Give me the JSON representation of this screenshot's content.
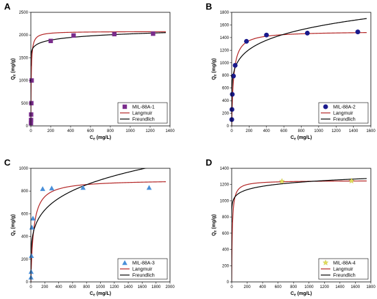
{
  "chart_data": [
    {
      "panel": "A",
      "type": "scatter",
      "xlabel": "Ce (mg/L)",
      "ylabel": "Qe (mg/g)",
      "xlim": [
        0,
        1400
      ],
      "ylim": [
        0,
        2500
      ],
      "xticks": [
        0,
        200,
        400,
        600,
        800,
        1000,
        1200,
        1400
      ],
      "yticks": [
        0,
        500,
        1000,
        1500,
        2000,
        2500
      ],
      "legend_position": "bottom-right",
      "series": [
        {
          "name": "MIL-88A-1",
          "kind": "points",
          "marker": "square",
          "color": "#7a2d8c",
          "x": [
            1,
            2,
            3,
            5,
            8,
            200,
            430,
            840,
            1230
          ],
          "y": [
            60,
            130,
            250,
            500,
            1000,
            1870,
            1990,
            2020,
            2030
          ]
        },
        {
          "name": "Langmuir",
          "kind": "curve",
          "color": "#b22222",
          "model": "langmuir",
          "qmax": 2080,
          "K": 0.25
        },
        {
          "name": "Freundlich",
          "kind": "curve",
          "color": "#000000",
          "model": "freundlich",
          "Kf": 1500,
          "n": 23
        }
      ]
    },
    {
      "panel": "B",
      "type": "scatter",
      "xlabel": "Ce (mg/L)",
      "ylabel": "Qe (mg/g)",
      "xlim": [
        0,
        1600
      ],
      "ylim": [
        0,
        1800
      ],
      "xticks": [
        0,
        200,
        400,
        600,
        800,
        1000,
        1200,
        1400,
        1600
      ],
      "yticks": [
        0,
        200,
        400,
        600,
        800,
        1000,
        1200,
        1400,
        1600,
        1800
      ],
      "legend_position": "bottom-right",
      "series": [
        {
          "name": "MIL-88A-2",
          "kind": "points",
          "marker": "circle",
          "color": "#1a1a8c",
          "x": [
            1,
            3,
            7,
            20,
            40,
            170,
            400,
            870,
            1450
          ],
          "y": [
            100,
            260,
            500,
            790,
            960,
            1340,
            1440,
            1470,
            1490
          ]
        },
        {
          "name": "Langmuir",
          "kind": "curve",
          "color": "#b22222",
          "model": "langmuir",
          "qmax": 1500,
          "K": 0.045
        },
        {
          "name": "Freundlich",
          "kind": "curve",
          "color": "#000000",
          "model": "freundlich",
          "Kf": 500,
          "n": 6
        }
      ]
    },
    {
      "panel": "C",
      "type": "scatter",
      "xlabel": "Ce (mg/L)",
      "ylabel": "Qe (mg/g)",
      "xlim": [
        0,
        2000
      ],
      "ylim": [
        0,
        1000
      ],
      "xticks": [
        0,
        200,
        400,
        600,
        800,
        1000,
        1200,
        1400,
        1600,
        1800,
        2000
      ],
      "yticks": [
        0,
        200,
        400,
        600,
        800,
        1000
      ],
      "legend_position": "bottom-right",
      "series": [
        {
          "name": "MIL-88A-3",
          "kind": "points",
          "marker": "triangle",
          "color": "#4a90d9",
          "x": [
            2,
            4,
            8,
            15,
            30,
            170,
            300,
            750,
            1700
          ],
          "y": [
            40,
            90,
            230,
            480,
            560,
            820,
            825,
            830,
            830
          ]
        },
        {
          "name": "Langmuir",
          "kind": "curve",
          "color": "#b22222",
          "model": "langmuir",
          "qmax": 900,
          "K": 0.025
        },
        {
          "name": "Freundlich",
          "kind": "curve",
          "color": "#000000",
          "model": "freundlich",
          "Kf": 200,
          "n": 4.6
        }
      ]
    },
    {
      "panel": "D",
      "type": "scatter",
      "xlabel": "Ce (mg/L)",
      "ylabel": "Qe (mg/g)",
      "xlim": [
        0,
        1800
      ],
      "ylim": [
        0,
        1400
      ],
      "xticks": [
        0,
        200,
        400,
        600,
        800,
        1000,
        1200,
        1400,
        1600,
        1800
      ],
      "yticks": [
        0,
        200,
        400,
        600,
        800,
        1000,
        1200,
        1400
      ],
      "legend_position": "bottom-right",
      "series": [
        {
          "name": "MIL-88A-4",
          "kind": "points",
          "marker": "star",
          "color": "#e0dc5a",
          "x": [
            650,
            1550
          ],
          "y": [
            1240,
            1245
          ]
        },
        {
          "name": "Langmuir",
          "kind": "curve",
          "color": "#b22222",
          "model": "langmuir",
          "qmax": 1250,
          "K": 0.12
        },
        {
          "name": "Freundlich",
          "kind": "curve",
          "color": "#000000",
          "model": "freundlich",
          "Kf": 860,
          "n": 19
        }
      ]
    }
  ]
}
